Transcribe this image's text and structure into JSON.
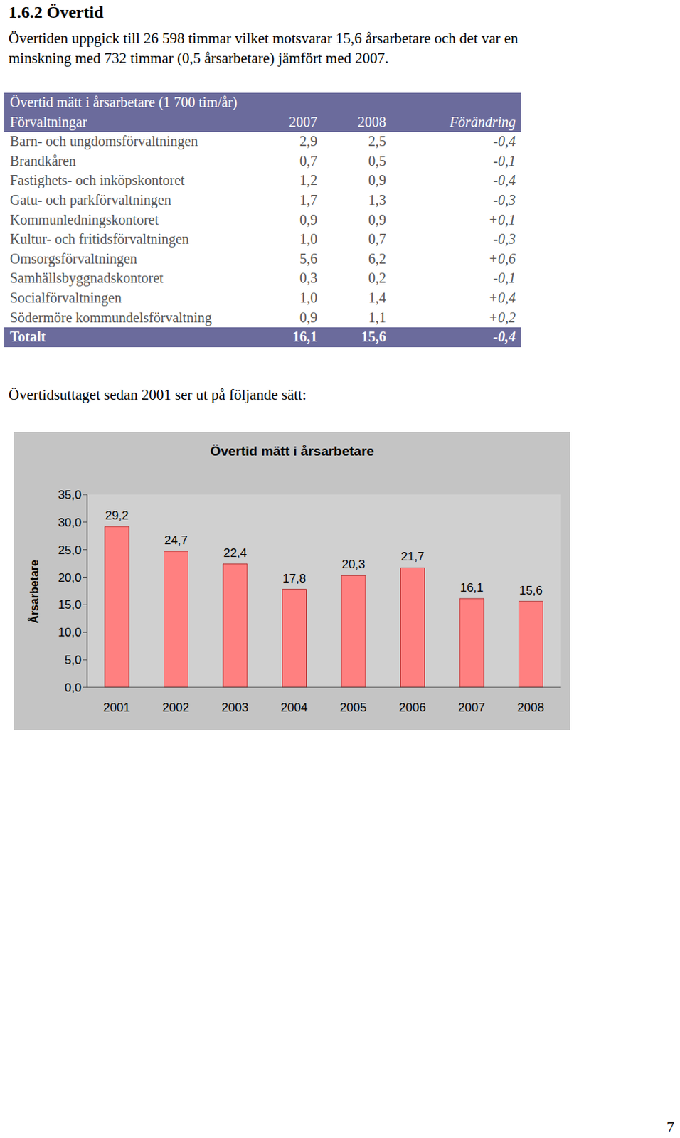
{
  "heading": "1.6.2 Övertid",
  "intro": [
    "Övertiden uppgick till 26 598 timmar vilket motsvarar 15,6 årsarbetare och det var en",
    "minskning med 732 timmar (0,5 årsarbetare) jämfört med 2007."
  ],
  "table": {
    "title": "Övertid mätt i årsarbetare (1 700 tim/år)",
    "header": [
      "Förvaltningar",
      "2007",
      "2008",
      "Förändring"
    ],
    "rows": [
      [
        "Barn- och ungdomsförvaltningen",
        "2,9",
        "2,5",
        "-0,4"
      ],
      [
        "Brandkåren",
        "0,7",
        "0,5",
        "-0,1"
      ],
      [
        "Fastighets- och inköpskontoret",
        "1,2",
        "0,9",
        "-0,4"
      ],
      [
        "Gatu- och parkförvaltningen",
        "1,7",
        "1,3",
        "-0,3"
      ],
      [
        "Kommunledningskontoret",
        "0,9",
        "0,9",
        "+0,1"
      ],
      [
        "Kultur- och fritidsförvaltningen",
        "1,0",
        "0,7",
        "-0,3"
      ],
      [
        "Omsorgsförvaltningen",
        "5,6",
        "6,2",
        "+0,6"
      ],
      [
        "Samhällsbyggnadskontoret",
        "0,3",
        "0,2",
        "-0,1"
      ],
      [
        "Socialförvaltningen",
        "1,0",
        "1,4",
        "+0,4"
      ],
      [
        "Södermöre kommundelsförvaltning",
        "0,9",
        "1,1",
        "+0,2"
      ]
    ],
    "total": [
      "Totalt",
      "16,1",
      "15,6",
      "-0,4"
    ]
  },
  "chart_intro": "Övertidsuttaget sedan 2001 ser ut på följande sätt:",
  "chart_data": {
    "type": "bar",
    "title": "Övertid mätt i årsarbetare",
    "y_label": "Årsarbetare",
    "categories": [
      "2001",
      "2002",
      "2003",
      "2004",
      "2005",
      "2006",
      "2007",
      "2008"
    ],
    "values": [
      29.2,
      24.7,
      22.4,
      17.8,
      20.3,
      21.7,
      16.1,
      15.6
    ],
    "value_labels": [
      "29,2",
      "24,7",
      "22,4",
      "17,8",
      "20,3",
      "21,7",
      "16,1",
      "15,6"
    ],
    "color": "#ff8080",
    "ylim": [
      0,
      35
    ],
    "yticks": [
      {
        "value": 0,
        "label": "0,0"
      },
      {
        "value": 5,
        "label": "5,0"
      },
      {
        "value": 10,
        "label": "10,0"
      },
      {
        "value": 15,
        "label": "15,0"
      },
      {
        "value": 20,
        "label": "20,0"
      },
      {
        "value": 25,
        "label": "25,0"
      },
      {
        "value": 30,
        "label": "30,0"
      },
      {
        "value": 35,
        "label": "35,0"
      }
    ],
    "grid": false,
    "data_labels": true
  },
  "page_number": "7"
}
